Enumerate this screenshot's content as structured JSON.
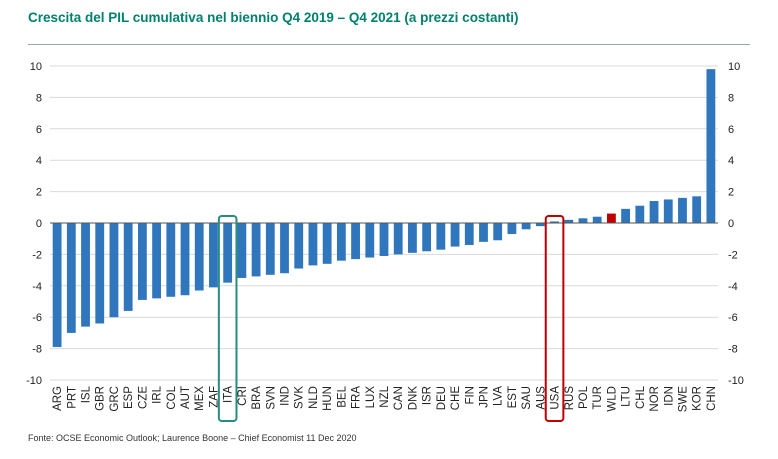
{
  "title": "Crescita del PIL cumulativa nel biennio Q4 2019 – Q4 2021 (a prezzi costanti)",
  "source": "Fonte: OCSE Economic Outlook; Laurence Boone – Chief Economist 11 Dec 2020",
  "colors": {
    "title": "#00816d",
    "bar": "#2f76bd",
    "bar_highlight": "#c00000",
    "ita_box": "#2a8c7c",
    "usa_box": "#c00000",
    "grid": "#d9d9d9"
  },
  "chart_data": {
    "type": "bar",
    "title": "Crescita del PIL cumulativa nel biennio Q4 2019 – Q4 2021 (a prezzi costanti)",
    "xlabel": "",
    "ylabel": "",
    "ylim": [
      -10,
      10
    ],
    "yticks": [
      10,
      8,
      6,
      4,
      2,
      0,
      -2,
      -4,
      -6,
      -8,
      -10
    ],
    "grid": true,
    "dual_y_axis": true,
    "categories": [
      "ARG",
      "PRT",
      "ISL",
      "GBR",
      "GRC",
      "ESP",
      "CZE",
      "IRL",
      "COL",
      "AUT",
      "MEX",
      "ZAF",
      "ITA",
      "CRI",
      "BRA",
      "SVN",
      "IND",
      "SVK",
      "NLD",
      "HUN",
      "BEL",
      "FRA",
      "LUX",
      "NZL",
      "CAN",
      "DNK",
      "ISR",
      "DEU",
      "CHE",
      "FIN",
      "JPN",
      "LVA",
      "EST",
      "SAU",
      "AUS",
      "USA",
      "RUS",
      "POL",
      "TUR",
      "WLD",
      "LTU",
      "CHL",
      "NOR",
      "IDN",
      "SWE",
      "KOR",
      "CHN"
    ],
    "values": [
      -7.9,
      -7.0,
      -6.6,
      -6.4,
      -6.0,
      -5.6,
      -4.9,
      -4.8,
      -4.7,
      -4.6,
      -4.3,
      -4.1,
      -3.8,
      -3.5,
      -3.4,
      -3.3,
      -3.2,
      -2.9,
      -2.7,
      -2.6,
      -2.4,
      -2.3,
      -2.2,
      -2.1,
      -2.0,
      -1.9,
      -1.8,
      -1.7,
      -1.5,
      -1.4,
      -1.2,
      -1.1,
      -0.7,
      -0.4,
      -0.2,
      0.1,
      0.2,
      0.3,
      0.4,
      0.6,
      0.9,
      1.1,
      1.4,
      1.5,
      1.6,
      1.7,
      9.8
    ],
    "highlighted_bar": "WLD",
    "boxed_categories": [
      "ITA",
      "USA"
    ]
  }
}
